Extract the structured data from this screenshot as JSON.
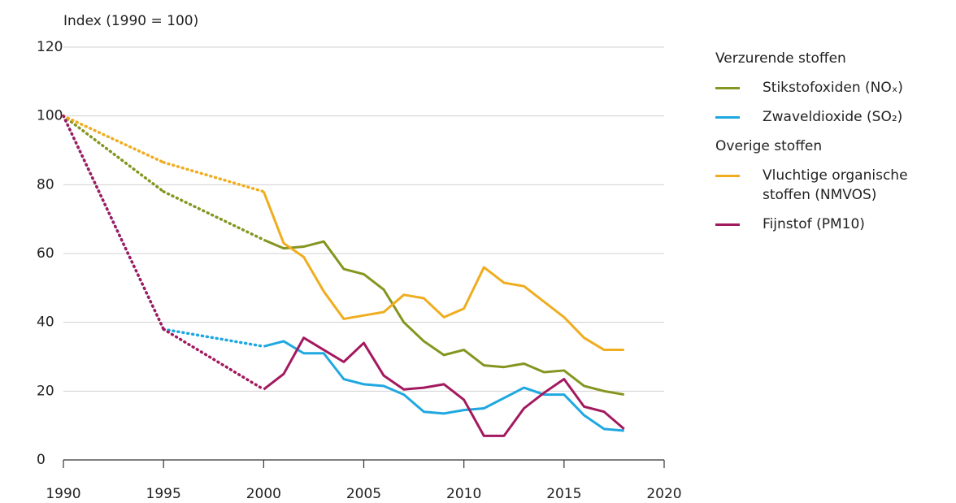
{
  "chart_data": {
    "type": "line",
    "y_label": "Index (1990 = 100)",
    "x": [
      1990,
      1995,
      2000,
      2001,
      2002,
      2003,
      2004,
      2005,
      2006,
      2007,
      2008,
      2009,
      2010,
      2011,
      2012,
      2013,
      2014,
      2015,
      2016,
      2017,
      2018
    ],
    "xlim": [
      1990,
      2020
    ],
    "xticks": [
      1990,
      1995,
      2000,
      2005,
      2010,
      2015,
      2020
    ],
    "ylim": [
      0,
      120
    ],
    "yticks": [
      0,
      20,
      40,
      60,
      80,
      100,
      120
    ],
    "grid": true,
    "series": [
      {
        "name": "Stikstofoxiden (NOₓ)",
        "group": "Verzurende stoffen",
        "color": "#85951f",
        "values": [
          100,
          78,
          64,
          61.5,
          62,
          63.5,
          55.5,
          54,
          49.5,
          40,
          34.5,
          30.5,
          32,
          27.5,
          27,
          28,
          25.5,
          26,
          21.5,
          20,
          19
        ]
      },
      {
        "name": "Zwaveldioxide (SO₂)",
        "group": "Verzurende stoffen",
        "color": "#1fa8e0",
        "values": [
          100,
          38,
          33,
          34.5,
          31,
          31,
          23.5,
          22,
          21.5,
          19,
          14,
          13.5,
          14.5,
          15,
          18,
          21,
          19,
          19,
          13,
          9,
          8.5
        ]
      },
      {
        "name": "Vluchtige organische stoffen (NMVOS)",
        "group": "Overige stoffen",
        "color": "#efad1f",
        "values": [
          100,
          86.5,
          78,
          63,
          59,
          49,
          41,
          42,
          43,
          48,
          47,
          41.5,
          44,
          56,
          51.5,
          50.5,
          46,
          41.5,
          35.5,
          32,
          32
        ]
      },
      {
        "name": "Fijnstof (PM10)",
        "group": "Overige stoffen",
        "color": "#a3195f",
        "values": [
          100,
          38,
          20.5,
          25,
          35.5,
          32,
          28.5,
          34,
          24.5,
          20.5,
          21,
          22,
          17.5,
          7,
          7,
          15,
          19.5,
          23.5,
          15.5,
          14,
          9
        ]
      }
    ]
  }
}
